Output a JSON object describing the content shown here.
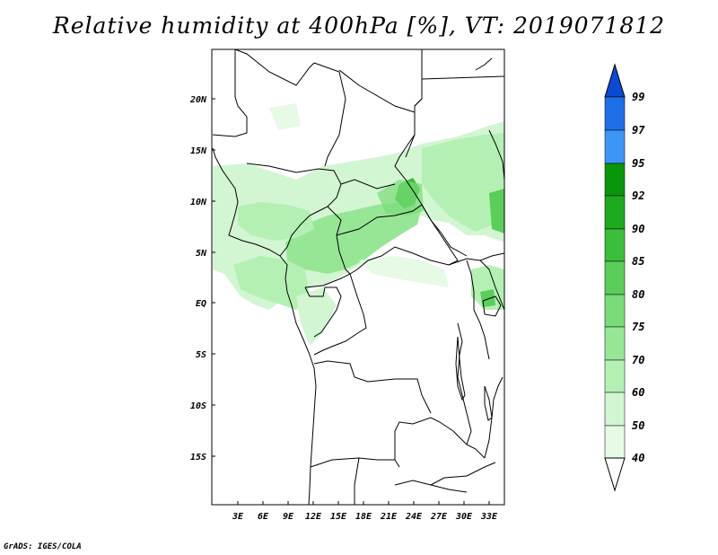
{
  "title": "Relative humidity at 400hPa [%], VT: 2019071812",
  "credit": "GrADS: IGES/COLA",
  "colors": {
    "background": "#ffffff",
    "coastline": "#000000",
    "rh_40": "#e6fae6",
    "rh_50": "#d2f5d2",
    "rh_60": "#b4f0b4",
    "rh_70": "#96e696",
    "rh_75": "#78dc78",
    "rh_80": "#5acd5a",
    "rh_85": "#3cbe3c",
    "rh_90": "#1eaa1e",
    "rh_92": "#0a960a",
    "rh_95": "#3c96f5",
    "rh_97": "#1e6ee6",
    "rh_99": "#0a4bd2"
  },
  "map": {
    "lat_labels": [
      "20N",
      "15N",
      "10N",
      "5N",
      "EQ",
      "5S",
      "10S",
      "15S"
    ],
    "lon_labels": [
      "3E",
      "6E",
      "9E",
      "12E",
      "15E",
      "18E",
      "21E",
      "24E",
      "27E",
      "30E",
      "33E"
    ]
  },
  "colorbar": {
    "levels": [
      "99",
      "97",
      "95",
      "92",
      "90",
      "85",
      "80",
      "75",
      "70",
      "60",
      "50",
      "40"
    ]
  }
}
